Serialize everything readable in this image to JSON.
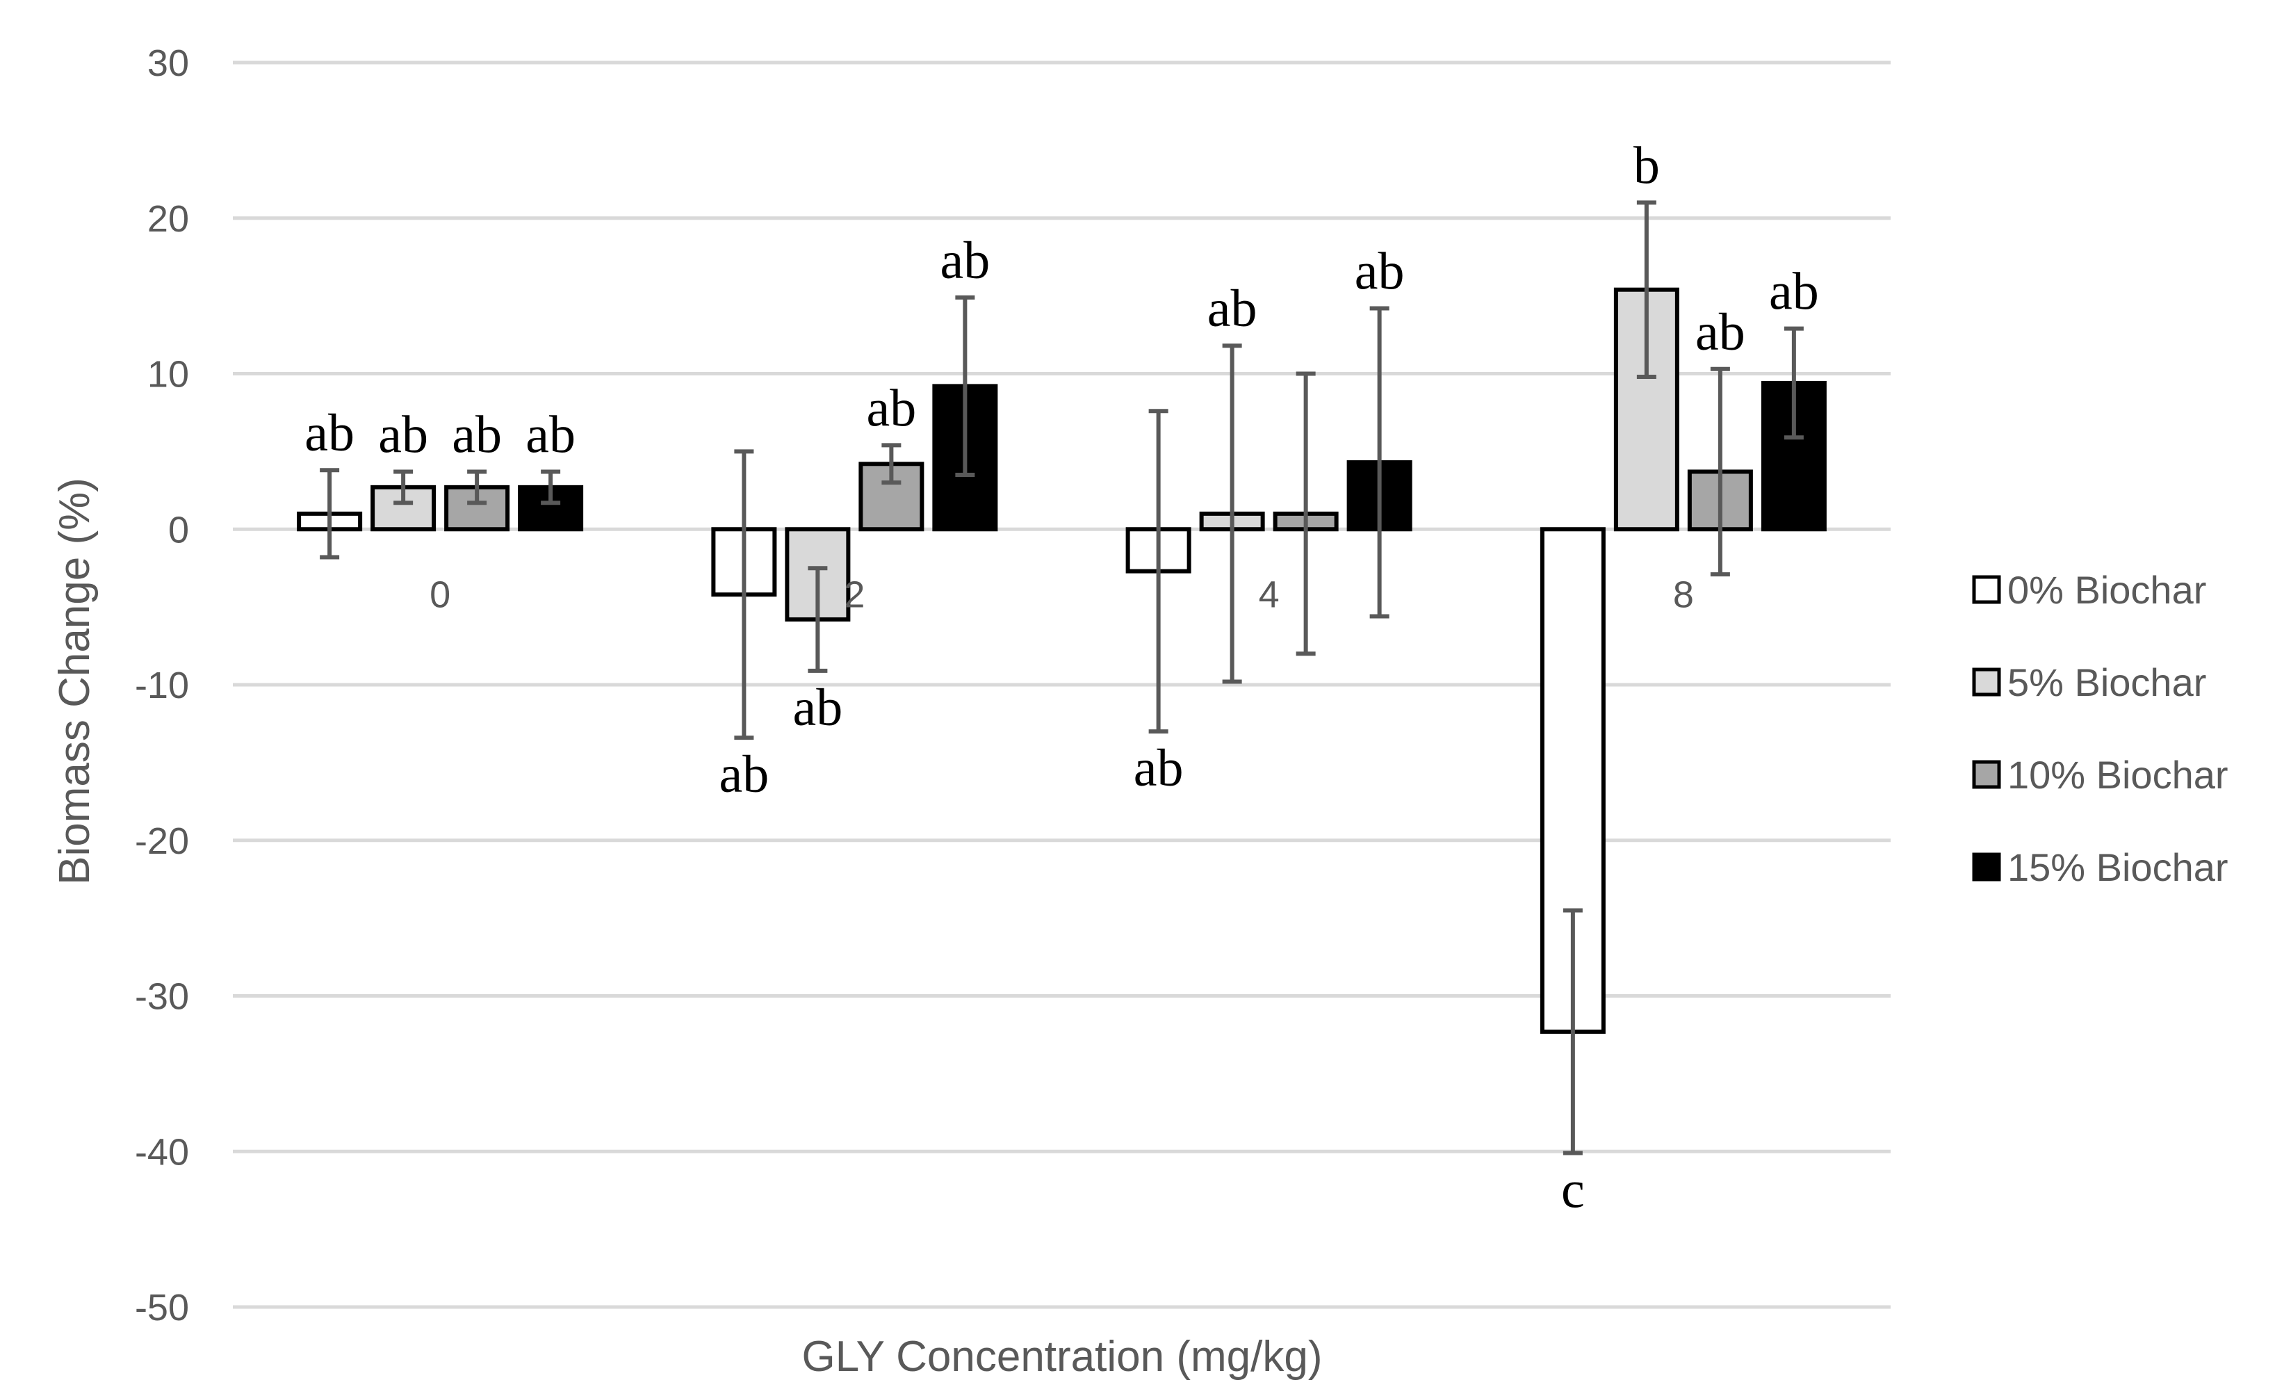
{
  "chart_data": {
    "type": "bar",
    "title": "",
    "xlabel": "GLY Concentration (mg/kg)",
    "ylabel": "Biomass Change (%)",
    "categories": [
      "0",
      "2",
      "4",
      "8"
    ],
    "ylim": [
      -50,
      30
    ],
    "yticks": [
      30,
      20,
      10,
      0,
      -10,
      -20,
      -30,
      -40,
      -50
    ],
    "grid": true,
    "legend_position": "right",
    "series": [
      {
        "name": "0% Biochar",
        "color": "#ffffff",
        "values": [
          1.0,
          -4.2,
          -2.7,
          -32.3
        ],
        "errors": [
          2.8,
          9.2,
          10.3,
          7.8
        ],
        "labels": [
          "ab",
          "ab",
          "ab",
          "c"
        ]
      },
      {
        "name": "5% Biochar",
        "color": "#d9d9d9",
        "values": [
          2.7,
          -5.8,
          1.0,
          15.4
        ],
        "errors": [
          1.0,
          3.3,
          10.8,
          5.6
        ],
        "labels": [
          "ab",
          "ab",
          "ab",
          "b"
        ]
      },
      {
        "name": "10% Biochar",
        "color": "#a6a6a6",
        "values": [
          2.7,
          4.2,
          1.0,
          3.7
        ],
        "errors": [
          1.0,
          1.2,
          9.0,
          6.6
        ],
        "labels": [
          "ab",
          "ab",
          "",
          "ab"
        ]
      },
      {
        "name": "15% Biochar",
        "color": "#000000",
        "values": [
          2.7,
          9.2,
          4.3,
          9.4
        ],
        "errors": [
          1.0,
          5.7,
          9.9,
          3.5
        ],
        "labels": [
          "ab",
          "ab",
          "ab",
          "ab"
        ]
      }
    ]
  }
}
